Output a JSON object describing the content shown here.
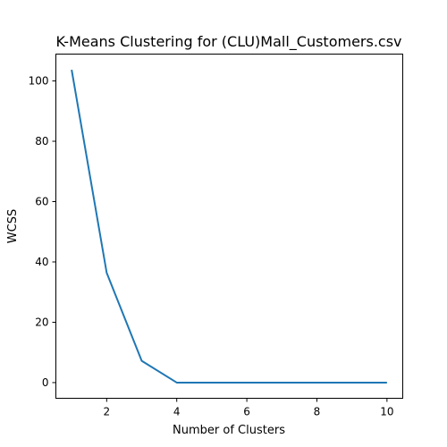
{
  "chart_data": {
    "type": "line",
    "title": "K-Means Clustering for (CLU)Mall_Customers.csv",
    "xlabel": "Number of Clusters",
    "ylabel": "WCSS",
    "x": [
      1,
      2,
      3,
      4,
      5,
      6,
      7,
      8,
      9,
      10
    ],
    "series": [
      {
        "values": [
          103.7,
          36.4,
          7.2,
          0,
          0,
          0,
          0,
          0,
          0,
          0
        ],
        "color": "#1f77b4"
      }
    ],
    "xlim": [
      0.55,
      10.45
    ],
    "ylim": [
      -5.2,
      108.9
    ],
    "xticks": [
      2,
      4,
      6,
      8,
      10
    ],
    "yticks": [
      0,
      20,
      40,
      60,
      80,
      100
    ],
    "grid": false,
    "legend": "none"
  }
}
